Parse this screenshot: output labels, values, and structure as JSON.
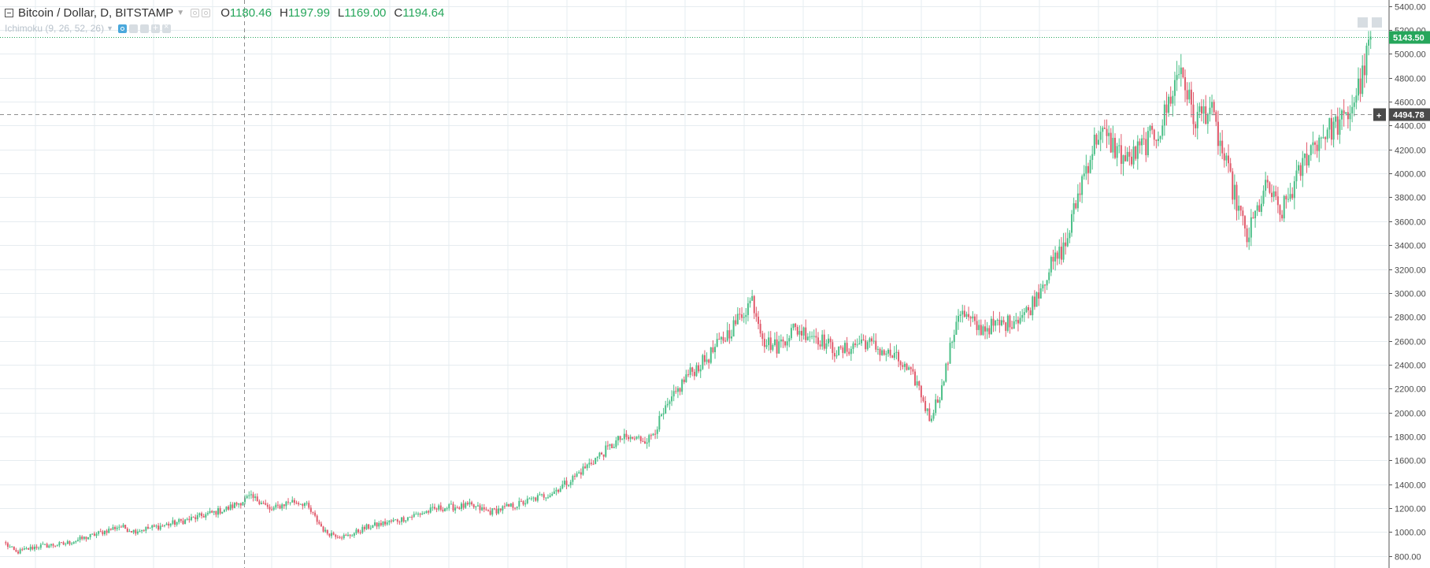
{
  "legend": {
    "symbol": "Bitcoin / Dollar, D, BITSTAMP",
    "open_label": "O",
    "open_value": "1180.46",
    "high_label": "H",
    "high_value": "1197.99",
    "low_label": "L",
    "low_value": "1169.00",
    "close_label": "C",
    "close_value": "1194.64"
  },
  "indicator": {
    "name": "Ichimoku (9, 26, 52, 26)"
  },
  "price_line": {
    "value": 5143.5,
    "label": "5143.50",
    "color": "#26a65b"
  },
  "crosshair": {
    "value": 4494.78,
    "label": "4494.78",
    "plus": "+"
  },
  "colors": {
    "up": "#4bbf87",
    "down": "#e15b6c",
    "grid": "#e6ecf0",
    "crosshair": "#8d8d8d"
  },
  "chart_data": {
    "type": "candlestick",
    "ylim": [
      700,
      5450
    ],
    "y_ticks": [
      "800.00",
      "1000.00",
      "1200.00",
      "1400.00",
      "1600.00",
      "1800.00",
      "2000.00",
      "2200.00",
      "2400.00",
      "2600.00",
      "2800.00",
      "3000.00",
      "3200.00",
      "3400.00",
      "3600.00",
      "3800.00",
      "4000.00",
      "4200.00",
      "4400.00",
      "4600.00",
      "4800.00",
      "5000.00",
      "5200.00",
      "5400.00"
    ],
    "keypoints": [
      [
        0,
        900
      ],
      [
        5,
        830
      ],
      [
        15,
        880
      ],
      [
        28,
        900
      ],
      [
        40,
        960
      ],
      [
        55,
        1050
      ],
      [
        62,
        1010
      ],
      [
        75,
        1050
      ],
      [
        90,
        1110
      ],
      [
        108,
        1200
      ],
      [
        118,
        1290
      ],
      [
        124,
        1260
      ],
      [
        128,
        1180
      ],
      [
        138,
        1260
      ],
      [
        145,
        1240
      ],
      [
        155,
        1000
      ],
      [
        165,
        960
      ],
      [
        175,
        1040
      ],
      [
        190,
        1100
      ],
      [
        210,
        1200
      ],
      [
        225,
        1220
      ],
      [
        235,
        1170
      ],
      [
        250,
        1240
      ],
      [
        265,
        1330
      ],
      [
        275,
        1450
      ],
      [
        285,
        1600
      ],
      [
        298,
        1780
      ],
      [
        312,
        1780
      ],
      [
        323,
        2100
      ],
      [
        330,
        2300
      ],
      [
        340,
        2450
      ],
      [
        352,
        2700
      ],
      [
        362,
        2950
      ],
      [
        368,
        2600
      ],
      [
        374,
        2550
      ],
      [
        382,
        2700
      ],
      [
        392,
        2650
      ],
      [
        404,
        2500
      ],
      [
        416,
        2600
      ],
      [
        432,
        2450
      ],
      [
        442,
        2250
      ],
      [
        448,
        1950
      ],
      [
        454,
        2200
      ],
      [
        462,
        2850
      ],
      [
        472,
        2700
      ],
      [
        486,
        2750
      ],
      [
        496,
        2850
      ],
      [
        506,
        3200
      ],
      [
        514,
        3400
      ],
      [
        522,
        3950
      ],
      [
        530,
        4350
      ],
      [
        536,
        4250
      ],
      [
        544,
        4100
      ],
      [
        550,
        4200
      ],
      [
        560,
        4380
      ],
      [
        566,
        4700
      ],
      [
        570,
        4900
      ],
      [
        576,
        4450
      ],
      [
        584,
        4550
      ],
      [
        592,
        4050
      ],
      [
        598,
        3700
      ],
      [
        602,
        3450
      ],
      [
        606,
        3650
      ],
      [
        612,
        3900
      ],
      [
        618,
        3650
      ],
      [
        625,
        3900
      ],
      [
        632,
        4200
      ],
      [
        640,
        4350
      ],
      [
        650,
        4450
      ],
      [
        658,
        4800
      ],
      [
        662,
        5144
      ]
    ],
    "candle_count": 663
  }
}
